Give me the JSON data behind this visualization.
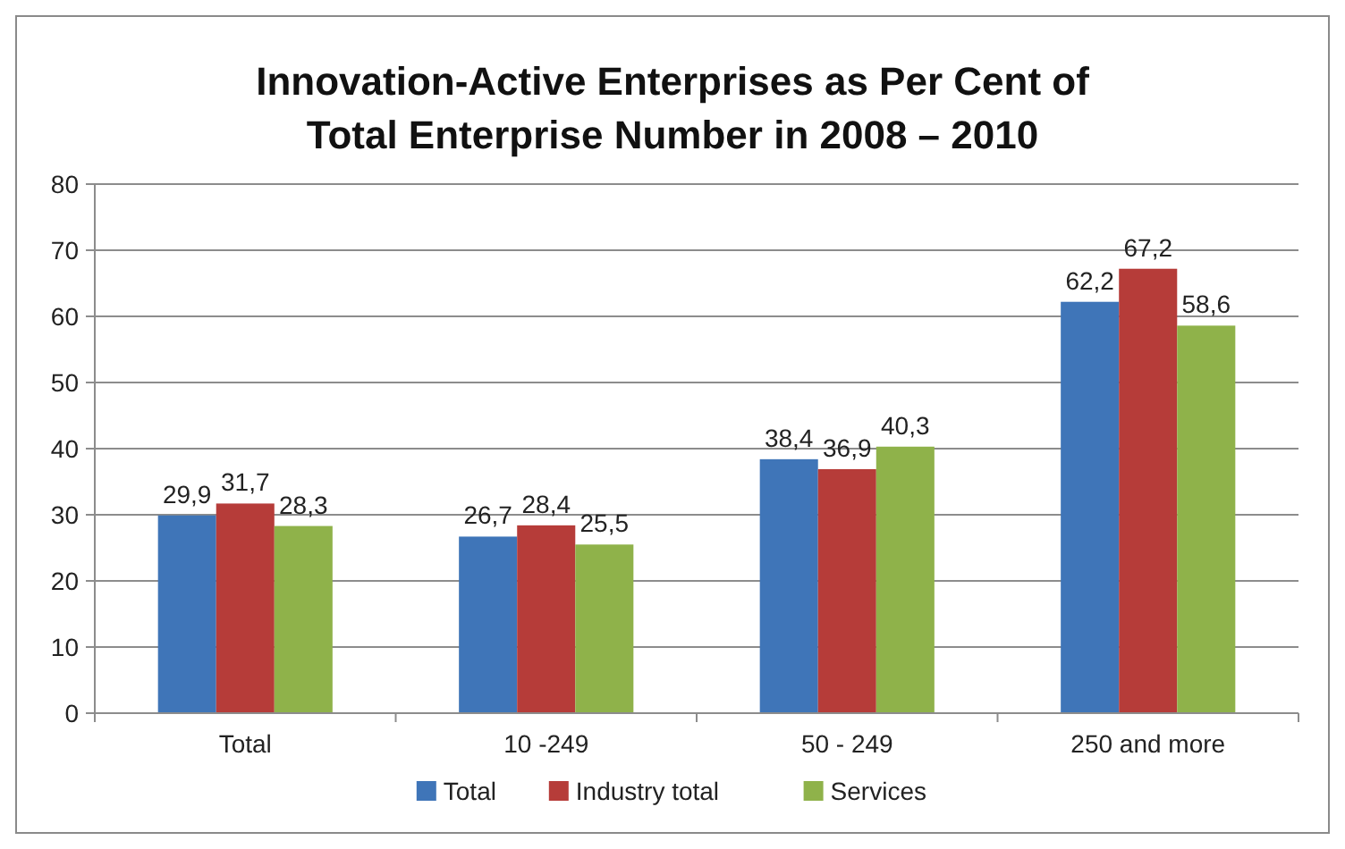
{
  "chart_data": {
    "type": "bar",
    "title": "Innovation-Active Enterprises as Per Cent of Total Enterprise Number in 2008 – 2010",
    "categories": [
      "Total",
      "10 -249",
      "50 - 249",
      "250 and more"
    ],
    "series": [
      {
        "name": "Total",
        "color": "#3f75b8",
        "values": [
          29.9,
          26.7,
          38.4,
          62.2
        ],
        "value_labels": [
          "29,9",
          "26,7",
          "38,4",
          "62,2"
        ]
      },
      {
        "name": "Industry total",
        "color": "#b63c39",
        "values": [
          31.7,
          28.4,
          36.9,
          67.2
        ],
        "value_labels": [
          "31,7",
          "28,4",
          "36,9",
          "67,2"
        ]
      },
      {
        "name": "Services",
        "color": "#8fb24a",
        "values": [
          28.3,
          25.5,
          40.3,
          58.6
        ],
        "value_labels": [
          "28,3",
          "25,5",
          "40,3",
          "58,6"
        ]
      }
    ],
    "ylim": [
      0,
      80
    ],
    "yticks": [
      0,
      10,
      20,
      30,
      40,
      50,
      60,
      70,
      80
    ],
    "grid": "y",
    "legend": "bottom"
  }
}
